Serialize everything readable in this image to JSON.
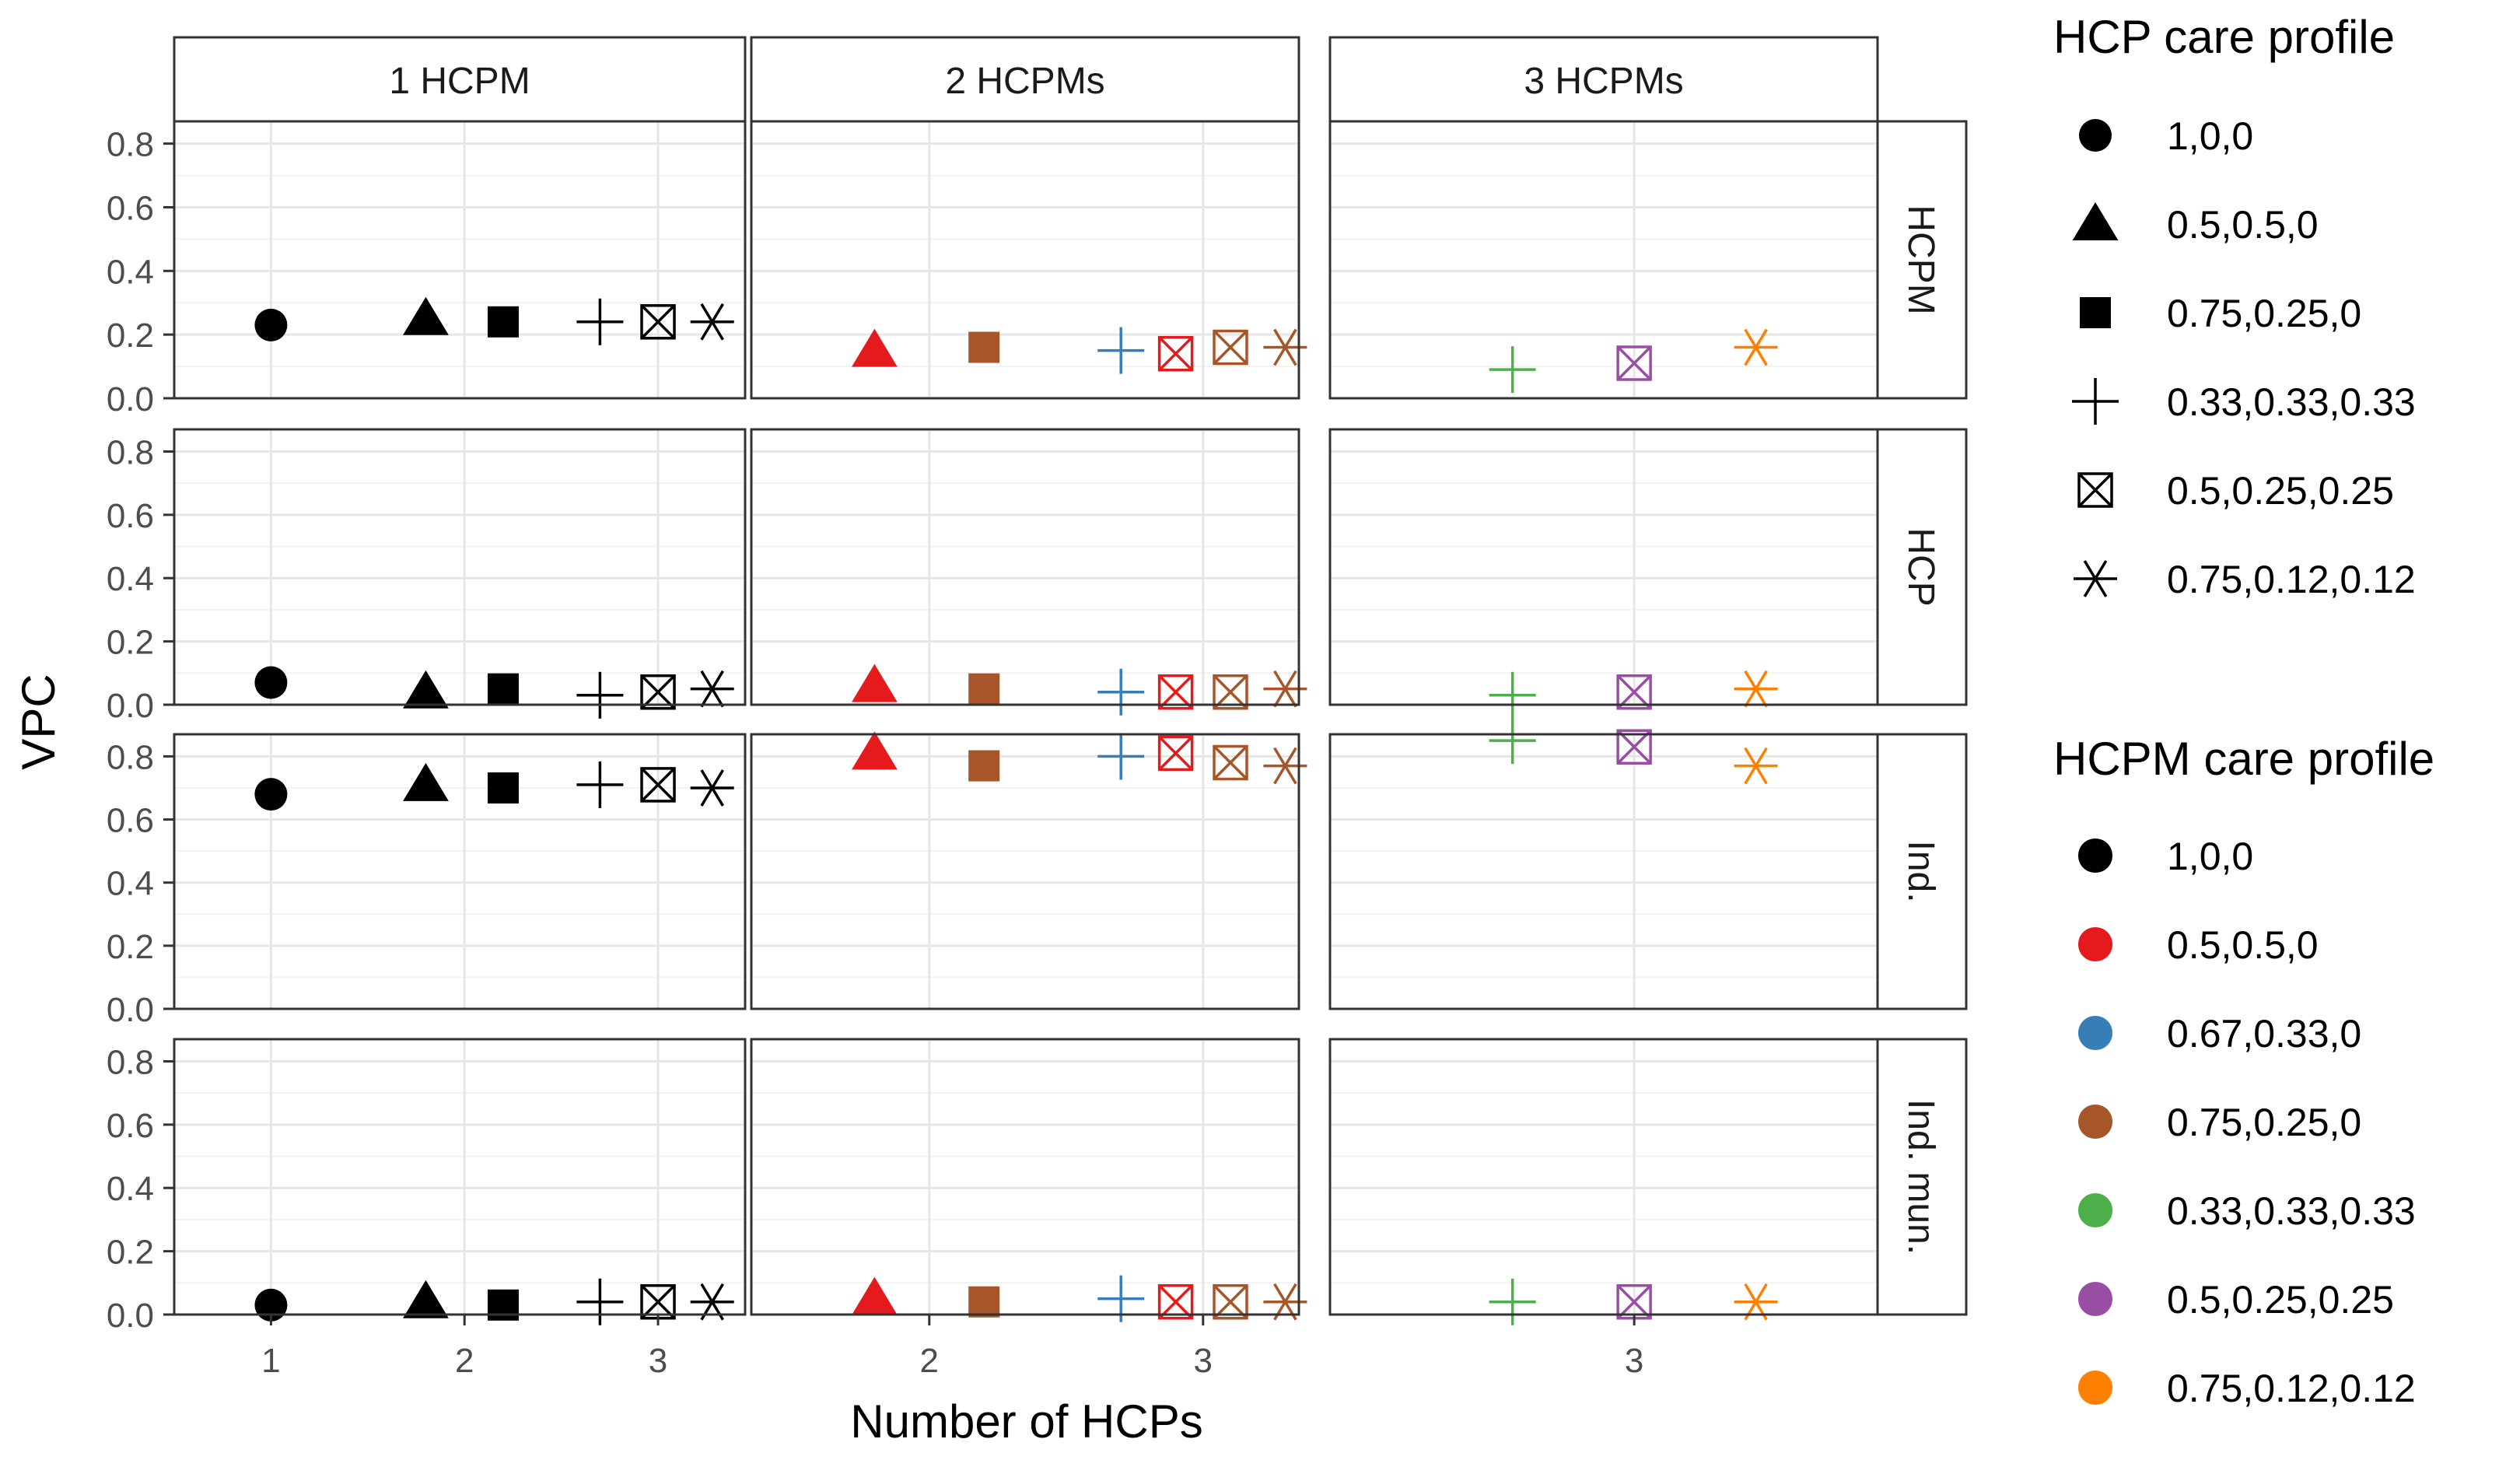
{
  "chart_data": {
    "type": "scatter",
    "xlabel": "Number of HCPs",
    "ylabel": "VPC",
    "ylim": [
      0,
      0.87
    ],
    "yticks": [
      "0.0",
      "0.2",
      "0.4",
      "0.6",
      "0.8"
    ],
    "grid": true,
    "columns": [
      {
        "label": "1 HCPM",
        "x_range": [
          0.5,
          3.45
        ],
        "x_ticks": [
          1,
          2,
          3
        ]
      },
      {
        "label": "2 HCPMs",
        "x_range": [
          1.35,
          3.35
        ],
        "x_ticks": [
          2,
          3
        ]
      },
      {
        "label": "3 HCPMs",
        "x_range": [
          2.0,
          3.8
        ],
        "x_ticks": [
          3
        ]
      }
    ],
    "rows": [
      "HCPM",
      "HCP",
      "Ind.",
      "Ind. mun."
    ],
    "hcp_profiles": [
      {
        "label": "1,0,0",
        "shape": "circle"
      },
      {
        "label": "0.5,0.5,0",
        "shape": "triangle"
      },
      {
        "label": "0.75,0.25,0",
        "shape": "square"
      },
      {
        "label": "0.33,0.33,0.33",
        "shape": "plus"
      },
      {
        "label": "0.5,0.25,0.25",
        "shape": "boxx"
      },
      {
        "label": "0.75,0.12,0.12",
        "shape": "asterisk"
      }
    ],
    "hcpm_profiles": [
      {
        "label": "1,0,0",
        "color": "#000000"
      },
      {
        "label": "0.5,0.5,0",
        "color": "#E41A1C"
      },
      {
        "label": "0.67,0.33,0",
        "color": "#377EB8"
      },
      {
        "label": "0.75,0.25,0",
        "color": "#A65628"
      },
      {
        "label": "0.33,0.33,0.33",
        "color": "#4DAF4A"
      },
      {
        "label": "0.5,0.25,0.25",
        "color": "#984EA3"
      },
      {
        "label": "0.75,0.12,0.12",
        "color": "#FF7F00"
      }
    ],
    "points": [
      {
        "col": 0,
        "x": 1.0,
        "hcp": 0,
        "hcpm": 0,
        "values": [
          0.23,
          0.07,
          0.68,
          0.03
        ]
      },
      {
        "col": 0,
        "x": 1.8,
        "hcp": 1,
        "hcpm": 0,
        "values": [
          0.25,
          0.04,
          0.71,
          0.04
        ]
      },
      {
        "col": 0,
        "x": 2.2,
        "hcp": 2,
        "hcpm": 0,
        "values": [
          0.24,
          0.05,
          0.7,
          0.03
        ]
      },
      {
        "col": 0,
        "x": 2.7,
        "hcp": 3,
        "hcpm": 0,
        "values": [
          0.24,
          0.03,
          0.71,
          0.04
        ]
      },
      {
        "col": 0,
        "x": 3.0,
        "hcp": 4,
        "hcpm": 0,
        "values": [
          0.24,
          0.04,
          0.71,
          0.04
        ]
      },
      {
        "col": 0,
        "x": 3.28,
        "hcp": 5,
        "hcpm": 0,
        "values": [
          0.24,
          0.05,
          0.7,
          0.04
        ]
      },
      {
        "col": 1,
        "x": 1.8,
        "hcp": 1,
        "hcpm": 1,
        "values": [
          0.15,
          0.06,
          0.81,
          0.05
        ]
      },
      {
        "col": 1,
        "x": 2.2,
        "hcp": 2,
        "hcpm": 3,
        "values": [
          0.16,
          0.05,
          0.77,
          0.04
        ]
      },
      {
        "col": 1,
        "x": 2.7,
        "hcp": 3,
        "hcpm": 2,
        "values": [
          0.15,
          0.04,
          0.8,
          0.05
        ]
      },
      {
        "col": 1,
        "x": 2.9,
        "hcp": 4,
        "hcpm": 1,
        "values": [
          0.14,
          0.04,
          0.81,
          0.04
        ]
      },
      {
        "col": 1,
        "x": 3.1,
        "hcp": 4,
        "hcpm": 3,
        "values": [
          0.16,
          0.04,
          0.78,
          0.04
        ]
      },
      {
        "col": 1,
        "x": 3.3,
        "hcp": 5,
        "hcpm": 3,
        "values": [
          0.16,
          0.05,
          0.77,
          0.04
        ]
      },
      {
        "col": 2,
        "x": 2.6,
        "hcp": 3,
        "hcpm": 4,
        "values": [
          0.09,
          0.03,
          0.85,
          0.04
        ]
      },
      {
        "col": 2,
        "x": 3.0,
        "hcp": 4,
        "hcpm": 5,
        "values": [
          0.11,
          0.04,
          0.83,
          0.04
        ]
      },
      {
        "col": 2,
        "x": 3.4,
        "hcp": 5,
        "hcpm": 6,
        "values": [
          0.16,
          0.05,
          0.77,
          0.04
        ]
      }
    ]
  },
  "legend": {
    "hcp_title": "HCP care profile",
    "hcpm_title": "HCPM care profile"
  }
}
